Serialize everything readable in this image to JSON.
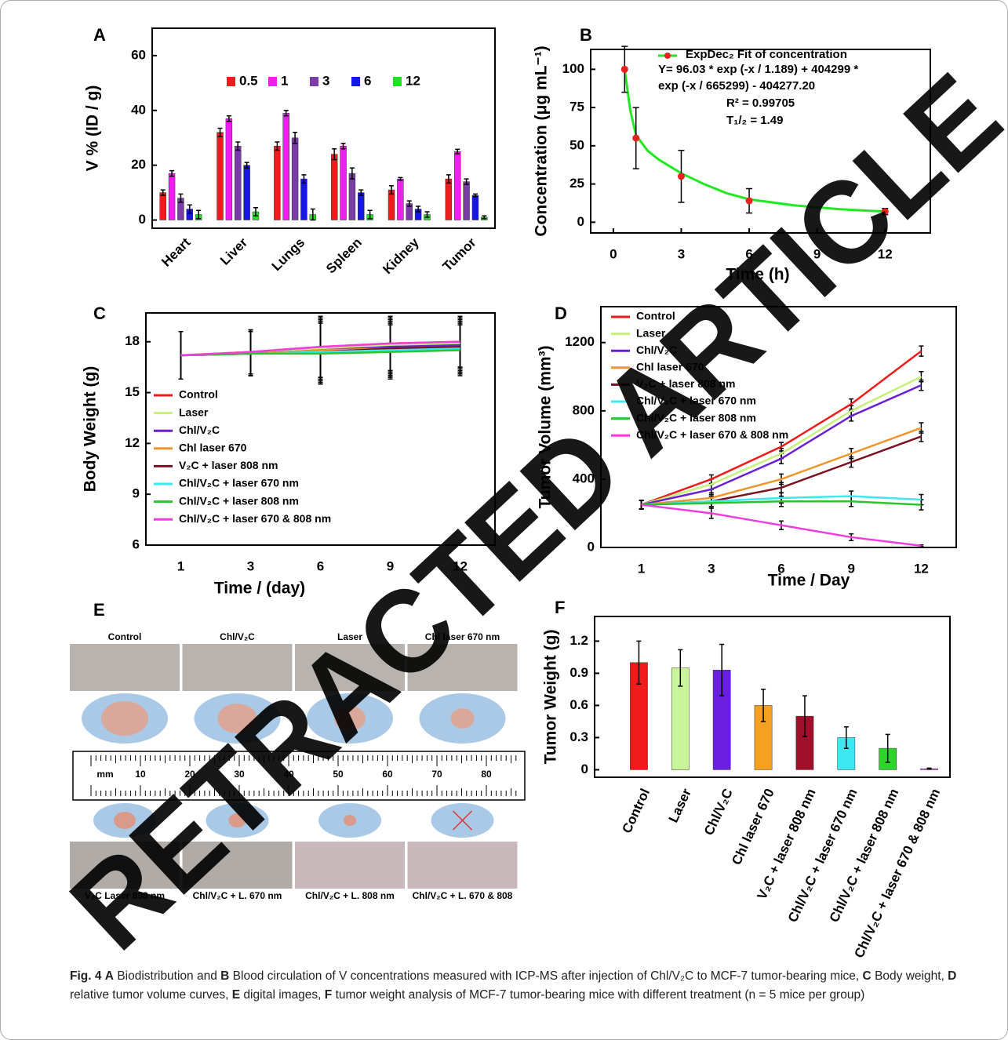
{
  "chart_data": [
    {
      "type": "bar",
      "panel": "A",
      "y_label": "V % (ID / g)",
      "categories": [
        "Heart",
        "Liver",
        "Lungs",
        "Spleen",
        "Kidney",
        "Tumor"
      ],
      "series": [
        {
          "name": "0.5",
          "color": "#ee1c1c",
          "values": [
            10,
            32,
            27,
            24,
            11,
            15
          ],
          "errors": [
            1,
            1.5,
            1.5,
            2,
            1.5,
            1.5
          ]
        },
        {
          "name": "1",
          "color": "#f01ef0",
          "values": [
            17,
            37,
            39,
            27,
            15,
            25
          ],
          "errors": [
            1,
            1,
            1,
            1,
            0.5,
            0.8
          ]
        },
        {
          "name": "3",
          "color": "#7a3da8",
          "values": [
            8,
            27,
            30,
            17,
            6,
            14
          ],
          "errors": [
            1.5,
            1.5,
            2,
            2,
            1,
            1
          ]
        },
        {
          "name": "6",
          "color": "#1616e6",
          "values": [
            4,
            20,
            15,
            10,
            4,
            9
          ],
          "errors": [
            1.5,
            1,
            1.5,
            1,
            1,
            0.5
          ]
        },
        {
          "name": "12",
          "color": "#22e022",
          "values": [
            2,
            3,
            2,
            2,
            2,
            1
          ],
          "errors": [
            1.5,
            1.5,
            2,
            1.5,
            1,
            0.5
          ]
        }
      ],
      "ylim": [
        -3,
        70
      ],
      "yticks": [
        0,
        20,
        40,
        60
      ],
      "legend": "top"
    },
    {
      "type": "scatter",
      "panel": "B",
      "x_label": "Time (h)",
      "y_label": "Concentration (μg mL⁻¹)",
      "x": [
        0.5,
        1,
        3,
        6,
        12
      ],
      "values": [
        100,
        55,
        30,
        14,
        7
      ],
      "errors": [
        15,
        20,
        17,
        8,
        2
      ],
      "color": "#e8231f",
      "fit": {
        "name": "ExpDec₂ Fit of concentration",
        "color": "#22e822",
        "x": [
          0.5,
          0.75,
          1,
          1.5,
          2,
          3,
          4,
          5,
          6,
          8,
          10,
          12
        ],
        "values": [
          100,
          73,
          57,
          47,
          41,
          32,
          25,
          19,
          15,
          11,
          8.5,
          7
        ]
      },
      "annotations": [
        "Y= 96.03 * exp (-x / 1.189) + 404299 *",
        "exp (-x / 665299) - 404277.20",
        "R² = 0.99705",
        "T₁/₂ = 1.49"
      ],
      "xlim": [
        -1,
        14
      ],
      "xticks": [
        0,
        3,
        6,
        9,
        12
      ],
      "ylim": [
        -7,
        113
      ],
      "yticks": [
        0,
        25,
        50,
        75,
        100
      ],
      "legend": "upper right"
    },
    {
      "type": "line",
      "panel": "C",
      "x_label": "Time / (day)",
      "y_label": "Body Weight (g)",
      "categories": [
        "1",
        "3",
        "6",
        "9",
        "12"
      ],
      "series": [
        {
          "name": "Control",
          "color": "#f01b1b",
          "values": [
            17.2,
            17.4,
            17.7,
            17.9,
            18.0
          ],
          "errors": [
            1.4,
            1.3,
            1.8,
            1.6,
            1.5
          ]
        },
        {
          "name": "Laser",
          "color": "#c5f07a",
          "values": [
            17.2,
            17.4,
            17.6,
            17.8,
            17.9
          ],
          "errors": [
            1.4,
            1.3,
            1.8,
            1.6,
            1.5
          ]
        },
        {
          "name": "Chl/V₂C",
          "color": "#6a1fd0",
          "values": [
            17.2,
            17.3,
            17.5,
            17.7,
            17.8
          ],
          "errors": [
            1.4,
            1.3,
            1.8,
            1.6,
            1.5
          ]
        },
        {
          "name": "Chl laser 670",
          "color": "#f0952a",
          "values": [
            17.2,
            17.3,
            17.5,
            17.6,
            17.7
          ],
          "errors": [
            1.4,
            1.3,
            1.8,
            1.6,
            1.5
          ]
        },
        {
          "name": "V₂C +  laser 808 nm",
          "color": "#7a1020",
          "values": [
            17.2,
            17.3,
            17.4,
            17.6,
            17.7
          ],
          "errors": [
            1.4,
            1.3,
            1.8,
            1.6,
            1.5
          ]
        },
        {
          "name": "Chl/V₂C + laser 670 nm",
          "color": "#3ee8f0",
          "values": [
            17.2,
            17.3,
            17.4,
            17.5,
            17.6
          ],
          "errors": [
            1.4,
            1.3,
            1.8,
            1.6,
            1.5
          ]
        },
        {
          "name": "Chl/V₂C + laser 808 nm",
          "color": "#2cc42c",
          "values": [
            17.2,
            17.3,
            17.3,
            17.4,
            17.5
          ],
          "errors": [
            1.4,
            1.3,
            1.8,
            1.6,
            1.5
          ]
        },
        {
          "name": "Chl/V₂C + laser 670 & 808 nm",
          "color": "#f03ce0",
          "values": [
            17.2,
            17.4,
            17.7,
            17.9,
            18.0
          ],
          "errors": [
            1.4,
            1.3,
            1.8,
            1.6,
            1.5
          ]
        }
      ],
      "ylim": [
        6,
        19.7
      ],
      "yticks": [
        6,
        9,
        12,
        15,
        18
      ],
      "legend": "lower left"
    },
    {
      "type": "line",
      "panel": "D",
      "x_label": "Time  / Day",
      "y_label": "Tumor Volume (mm³)",
      "categories": [
        "1",
        "3",
        "6",
        "9",
        "12"
      ],
      "series": [
        {
          "name": "Control",
          "color": "#f01b1b",
          "values": [
            250,
            400,
            590,
            840,
            1150
          ],
          "errors": [
            25,
            25,
            25,
            30,
            30
          ]
        },
        {
          "name": "Laser",
          "color": "#c5f07a",
          "values": [
            250,
            370,
            550,
            800,
            1000
          ],
          "errors": [
            25,
            30,
            30,
            30,
            30
          ]
        },
        {
          "name": "Chl/V₂C",
          "color": "#6a1fd0",
          "values": [
            250,
            340,
            520,
            770,
            950
          ],
          "errors": [
            25,
            30,
            30,
            30,
            30
          ]
        },
        {
          "name": "Chl laser 670",
          "color": "#f0952a",
          "values": [
            250,
            290,
            400,
            550,
            700
          ],
          "errors": [
            25,
            30,
            30,
            30,
            30
          ]
        },
        {
          "name": "V₂C + laser 808 nm",
          "color": "#7a1020",
          "values": [
            250,
            270,
            350,
            500,
            650
          ],
          "errors": [
            25,
            30,
            30,
            30,
            30
          ]
        },
        {
          "name": "Chl/V₂C + laser 670 nm",
          "color": "#3ee8f0",
          "values": [
            250,
            270,
            290,
            300,
            280
          ],
          "errors": [
            25,
            30,
            30,
            30,
            30
          ]
        },
        {
          "name": "Chl/V₂C + laser 808 nm",
          "color": "#2cc42c",
          "values": [
            250,
            260,
            270,
            270,
            250
          ],
          "errors": [
            25,
            30,
            30,
            30,
            30
          ]
        },
        {
          "name": "Chl/V₂C + laser 670 & 808 nm",
          "color": "#f03ce0",
          "values": [
            250,
            200,
            130,
            60,
            10
          ],
          "errors": [
            25,
            30,
            25,
            20,
            5
          ]
        }
      ],
      "ylim": [
        0,
        1410
      ],
      "yticks": [
        0,
        400,
        800,
        1200
      ],
      "legend": "upper left"
    },
    {
      "type": "bar",
      "panel": "F",
      "y_label": "Tumor Weight (g)",
      "categories": [
        "Control",
        "Laser",
        "Chl/V₂C",
        "Chl laser 670",
        "V₂C + laser 808 nm",
        "Chl/V₂C + laser 670 nm",
        "Chl/V₂C + laser 808 nm",
        "Chl/V₂C + laser 670 & 808 nm"
      ],
      "values": [
        1.0,
        0.95,
        0.93,
        0.6,
        0.5,
        0.3,
        0.2,
        0.01
      ],
      "errors": [
        0.2,
        0.17,
        0.24,
        0.15,
        0.19,
        0.1,
        0.13,
        0.005
      ],
      "colors": [
        "#f01b1b",
        "#c8f59a",
        "#6a1fe0",
        "#f5a020",
        "#a0102a",
        "#3ee8f0",
        "#2cd42c",
        "#f03ce0"
      ],
      "ylim": [
        -0.07,
        1.43
      ],
      "yticks": [
        0,
        0.3,
        0.6,
        0.9,
        1.2
      ]
    }
  ],
  "panel_e": {
    "panel": "E",
    "top_labels": [
      "Control",
      "Chl/V₂C",
      "Laser",
      "Chl laser 670 nm"
    ],
    "bottom_labels": [
      "V₂C Laser 808 nm",
      "Chl/V₂C + L. 670 nm",
      "Chl/V₂C + L. 808 nm",
      "Chl/V₂C + L. 670 & 808"
    ],
    "ruler_unit": "mm",
    "ruler_labels": [
      "10",
      "20",
      "30",
      "40",
      "50",
      "60",
      "70",
      "80"
    ]
  },
  "caption": [
    "Fig. 4",
    "A",
    "Biodistribution and",
    "B",
    "Blood circulation of V concentrations measured with ICP-MS after injection of Chl/V₂C to MCF-7 tumor-bearing mice,",
    "C",
    "Body weight,",
    "D",
    "relative tumor volume curves,",
    "E",
    "digital images,",
    "F",
    "tumor weight analysis of MCF-7 tumor-bearing mice with different treatment (n = 5 mice per group)"
  ],
  "watermark": "RETRACTED ARTICLE"
}
